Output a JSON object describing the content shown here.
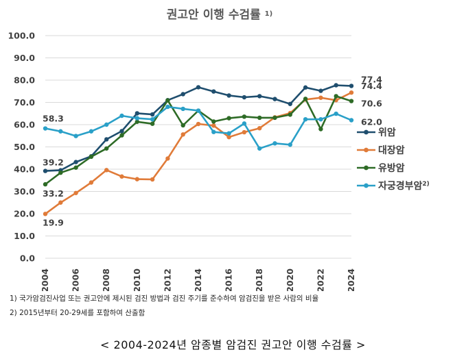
{
  "chart_data": {
    "type": "line",
    "title": "권고안 이행 수검률",
    "title_sup": "1)",
    "ylim": [
      0,
      100
    ],
    "y_ticks": [
      "0.0",
      "10.0",
      "20.0",
      "30.0",
      "40.0",
      "50.0",
      "60.0",
      "70.0",
      "80.0",
      "90.0",
      "100.0"
    ],
    "x": [
      2004,
      2005,
      2006,
      2007,
      2008,
      2009,
      2010,
      2011,
      2012,
      2013,
      2014,
      2015,
      2016,
      2017,
      2018,
      2019,
      2020,
      2021,
      2022,
      2023,
      2024
    ],
    "x_ticks": [
      "2004",
      "2006",
      "2008",
      "2010",
      "2012",
      "2014",
      "2016",
      "2018",
      "2020",
      "2022",
      "2024"
    ],
    "grid": true,
    "legend_position": "right",
    "series": [
      {
        "name": "위암",
        "name_sup": "",
        "color": "#1f4e6e",
        "values": [
          39.2,
          39.5,
          43.2,
          45.8,
          53.4,
          57.1,
          65.1,
          64.6,
          71.0,
          73.7,
          76.8,
          74.9,
          73.1,
          72.3,
          72.8,
          71.5,
          69.3,
          76.7,
          75.2,
          77.7,
          77.4
        ],
        "start_label": "39.2",
        "end_label": "77.4"
      },
      {
        "name": "대장암",
        "name_sup": "",
        "color": "#e07b39",
        "values": [
          19.9,
          25.0,
          29.3,
          34.0,
          39.6,
          36.7,
          35.5,
          35.4,
          44.8,
          55.6,
          60.3,
          59.6,
          54.4,
          56.6,
          58.4,
          63.3,
          65.2,
          71.3,
          72.1,
          71.0,
          74.4
        ],
        "start_label": "19.9",
        "end_label": "74.4"
      },
      {
        "name": "유방암",
        "name_sup": "",
        "color": "#2e6b26",
        "values": [
          33.2,
          38.4,
          40.7,
          45.6,
          49.3,
          55.2,
          61.3,
          60.4,
          70.9,
          59.7,
          66.3,
          61.4,
          62.9,
          63.6,
          63.1,
          63.1,
          64.5,
          71.6,
          58.0,
          72.8,
          70.6
        ],
        "start_label": "33.2",
        "end_label": "70.6"
      },
      {
        "name": "자궁경부암",
        "name_sup": "2)",
        "color": "#2aa0c8",
        "values": [
          58.3,
          57.0,
          54.9,
          57.0,
          60.0,
          64.0,
          62.9,
          62.4,
          68.0,
          67.1,
          66.3,
          56.7,
          56.1,
          60.5,
          49.3,
          51.6,
          51.0,
          62.4,
          62.4,
          64.9,
          62.0
        ],
        "start_label": "58.3",
        "end_label": "62.0"
      }
    ]
  },
  "footnotes": {
    "fn1": "1) 국가암검진사업 또는 권고안에 제시된 검진 방법과 검진 주기를 준수하여 암검진을 받은 사람의 비율",
    "fn2": "2) 2015년부터 20-29세를 포함하여 산출함"
  },
  "caption": "< 2004-2024년 암종별 암검진 권고안 이행 수검률 >"
}
